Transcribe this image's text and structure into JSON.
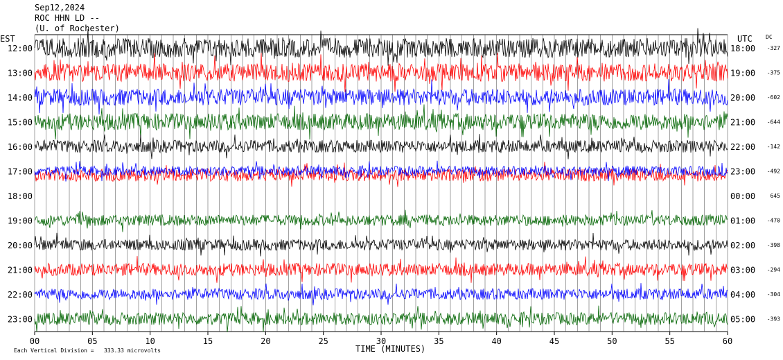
{
  "header": {
    "date": "Sep12,2024",
    "station": "ROC HHN LD --",
    "location": "(U. of Rochester)"
  },
  "footer": {
    "scale_note": "Each Vertical Division =",
    "scale_value": "333.33 microvolts"
  },
  "chart_data": {
    "type": "line",
    "title": "",
    "xlabel": "TIME (MINUTES)",
    "x_ticks": [
      "00",
      "05",
      "10",
      "15",
      "20",
      "25",
      "30",
      "35",
      "40",
      "45",
      "50",
      "55",
      "60"
    ],
    "xlim": [
      0,
      60
    ],
    "left_axis_label": "EST",
    "right_axis_label": "UTC",
    "dc_label": "DC",
    "grid": "vertical lines every minute",
    "series": [
      {
        "est": "12:00",
        "utc": "18:00",
        "dc": "-327",
        "color": "#000000",
        "amplitude": 14
      },
      {
        "est": "13:00",
        "utc": "19:00",
        "dc": "-375",
        "color": "#ff0000",
        "amplitude": 13
      },
      {
        "est": "14:00",
        "utc": "20:00",
        "dc": "-602",
        "color": "#0000ff",
        "amplitude": 12
      },
      {
        "est": "15:00",
        "utc": "21:00",
        "dc": "-644",
        "color": "#006400",
        "amplitude": 12
      },
      {
        "est": "16:00",
        "utc": "22:00",
        "dc": "-142",
        "color": "#000000",
        "amplitude": 9
      },
      {
        "est": "17:00",
        "utc": "23:00",
        "dc": "-492",
        "color": "#0000ff",
        "amplitude": 7
      },
      {
        "est": "18:00",
        "utc": "00:00",
        "dc": "645",
        "color": "#ff0000",
        "amplitude": 0
      },
      {
        "est": "19:00",
        "utc": "01:00",
        "dc": "-470",
        "color": "#006400",
        "amplitude": 8
      },
      {
        "est": "20:00",
        "utc": "02:00",
        "dc": "-398",
        "color": "#000000",
        "amplitude": 8
      },
      {
        "est": "21:00",
        "utc": "03:00",
        "dc": "-294",
        "color": "#ff0000",
        "amplitude": 9
      },
      {
        "est": "22:00",
        "utc": "04:00",
        "dc": "-304",
        "color": "#0000ff",
        "amplitude": 8
      },
      {
        "est": "23:00",
        "utc": "05:00",
        "dc": "-393",
        "color": "#006400",
        "amplitude": 9
      }
    ],
    "extra_red_trace": {
      "color": "#ff0000",
      "baseline_est": "17:00",
      "amplitude": 9
    }
  }
}
